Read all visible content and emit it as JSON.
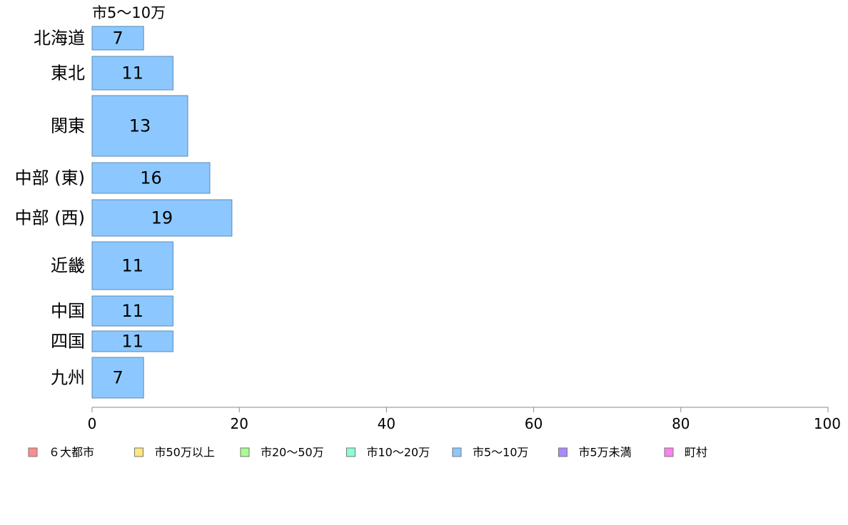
{
  "chart_data": {
    "type": "bar",
    "orientation": "horizontal",
    "series_title": "市5〜10万",
    "categories": [
      "北海道",
      "東北",
      "関東",
      "中部 (東)",
      "中部 (西)",
      "近畿",
      "中国",
      "四国",
      "九州"
    ],
    "values": [
      7,
      11,
      13,
      16,
      19,
      11,
      11,
      11,
      7
    ],
    "value_labels": [
      "7",
      "11",
      "13",
      "16",
      "19",
      "11",
      "11",
      "11",
      "7"
    ],
    "xlim": [
      0,
      100
    ],
    "x_ticks": [
      0,
      20,
      40,
      60,
      80,
      100
    ],
    "x_tick_labels": [
      "0",
      "20",
      "40",
      "60",
      "80",
      "100"
    ],
    "grid": false,
    "legend_position": "bottom",
    "legend": [
      {
        "label": "６大都市",
        "color": "#ff8c8c"
      },
      {
        "label": "市50万以上",
        "color": "#ffe680"
      },
      {
        "label": "市20〜50万",
        "color": "#a6ff8c"
      },
      {
        "label": "市10〜20万",
        "color": "#8cffd1"
      },
      {
        "label": "市5〜10万",
        "color": "#8cc8ff"
      },
      {
        "label": "市5万未満",
        "color": "#a88cff"
      },
      {
        "label": "町村",
        "color": "#ff80ee"
      }
    ],
    "bar_color": "#8cc8ff",
    "bar_stroke": "#5a8ab5",
    "axis_color": "#888888"
  }
}
